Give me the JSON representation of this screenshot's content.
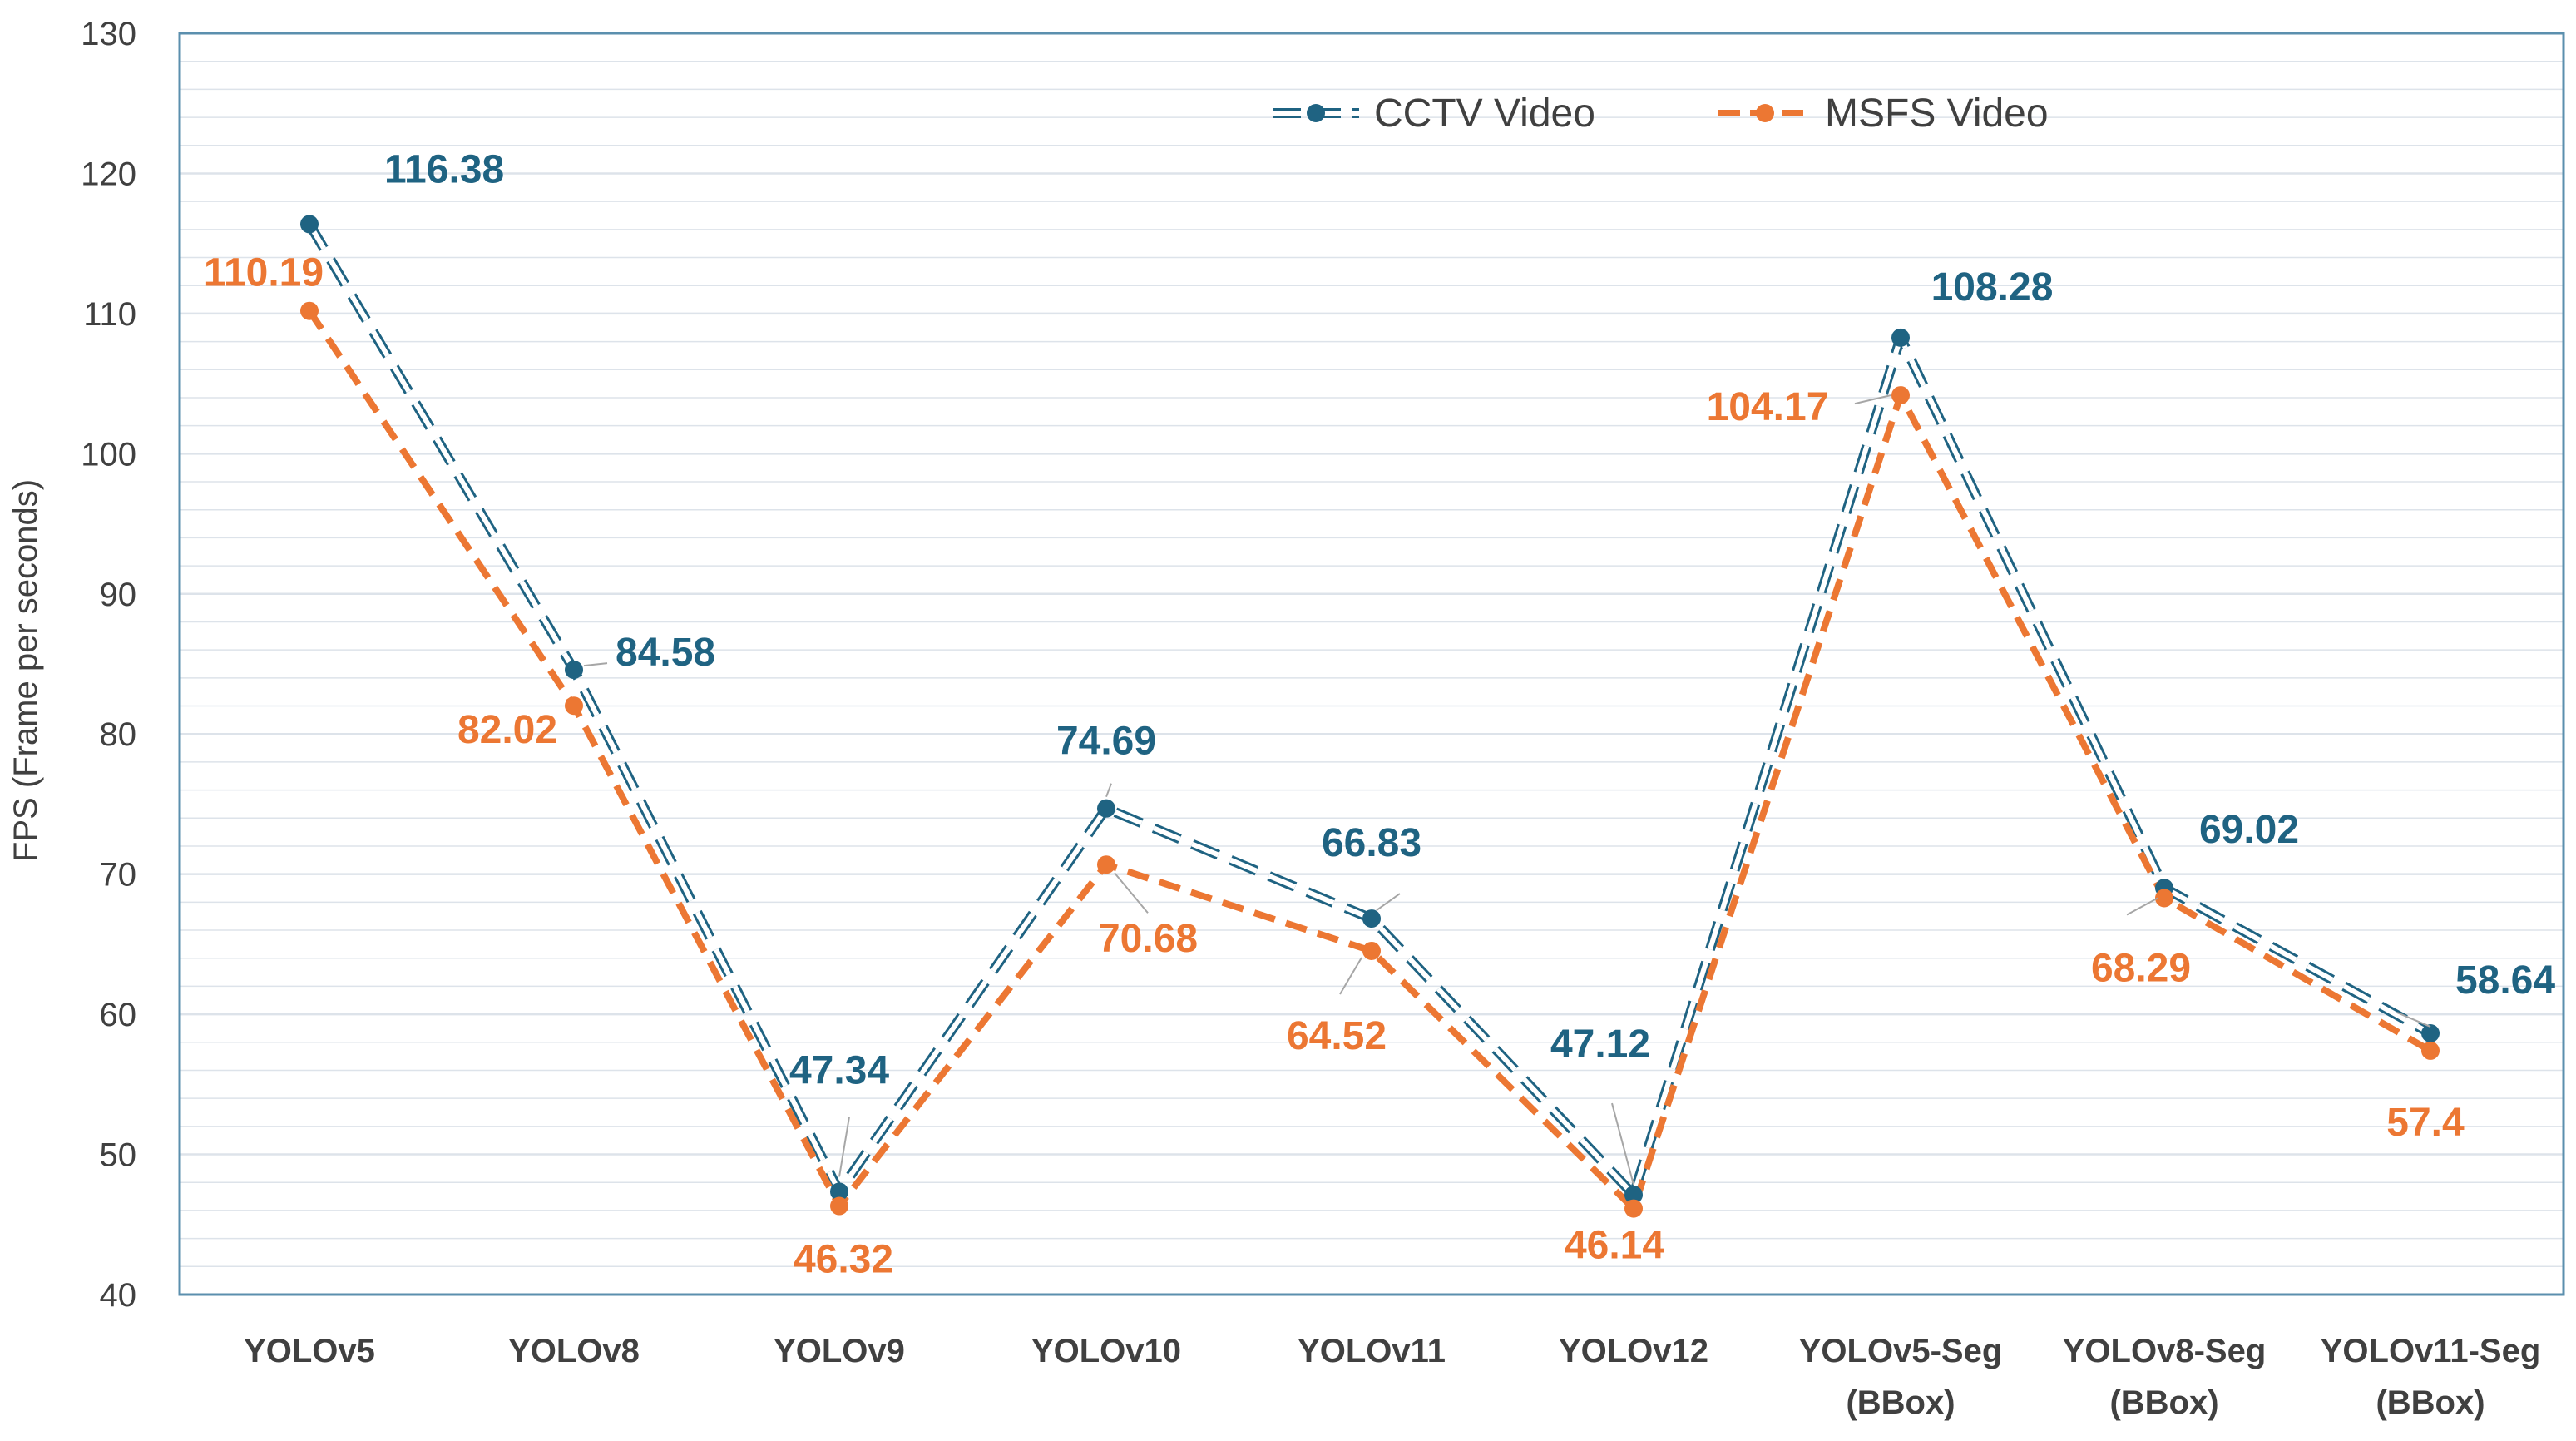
{
  "chart_data": {
    "type": "line",
    "title": "",
    "xlabel": "",
    "ylabel": "FPS (Frame per seconds)",
    "ylim": [
      40,
      130
    ],
    "y_major_step": 10,
    "y_minor_step": 2,
    "grid": true,
    "legend_position": "top",
    "categories": [
      [
        "YOLOv5"
      ],
      [
        "YOLOv8"
      ],
      [
        "YOLOv9"
      ],
      [
        "YOLOv10"
      ],
      [
        "YOLOv11"
      ],
      [
        "YOLOv12"
      ],
      [
        "YOLOv5-Seg",
        "(BBox)"
      ],
      [
        "YOLOv8-Seg",
        "(BBox)"
      ],
      [
        "YOLOv11-Seg",
        "(BBox)"
      ]
    ],
    "series": [
      {
        "name": "CCTV Video",
        "color": "#1f6382",
        "values": [
          116.38,
          84.58,
          47.34,
          74.69,
          66.83,
          47.12,
          108.28,
          69.02,
          58.64
        ],
        "labels": [
          "116.38",
          "84.58",
          "47.34",
          "74.69",
          "66.83",
          "47.12",
          "108.28",
          "69.02",
          "58.64"
        ]
      },
      {
        "name": "MSFS Video",
        "color": "#ec7733",
        "values": [
          110.19,
          82.02,
          46.32,
          70.68,
          64.52,
          46.14,
          104.17,
          68.29,
          57.4
        ],
        "labels": [
          "110.19",
          "82.02",
          "46.32",
          "70.68",
          "64.52",
          "46.14",
          "104.17",
          "68.29",
          "57.4"
        ]
      }
    ]
  },
  "colors": {
    "grid": "#dde3ea",
    "plot_border": "#5b8fae",
    "tick_text": "#404040"
  }
}
